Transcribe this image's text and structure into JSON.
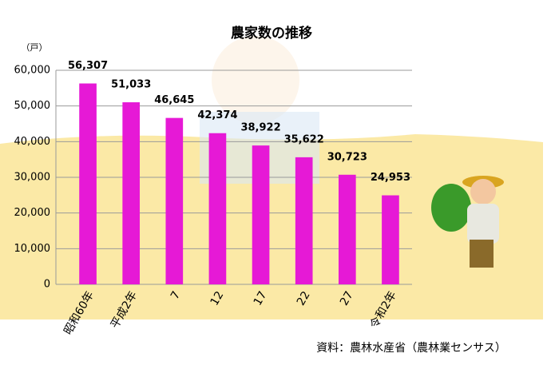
{
  "chart_data": {
    "type": "bar",
    "title": "農家数の推移",
    "ylabel": "（戸）",
    "categories": [
      "昭和60年",
      "平成2年",
      "7",
      "12",
      "17",
      "22",
      "27",
      "令和2年"
    ],
    "values": [
      56307,
      51033,
      46645,
      42374,
      38922,
      35622,
      30723,
      24953
    ],
    "value_labels": [
      "56,307",
      "51,033",
      "46,645",
      "42,374",
      "38,922",
      "35,622",
      "30,723",
      "24,953"
    ],
    "color": "#e619d6",
    "ylim": [
      0,
      60000
    ],
    "yticks": [
      0,
      {
        "value": 10000,
        "label": "10,000"
      },
      {
        "value": 20000,
        "label": "20,000"
      },
      {
        "value": 30000,
        "label": "30,000"
      },
      {
        "value": 40000,
        "label": "40,000"
      },
      {
        "value": 50000,
        "label": "50,000"
      },
      {
        "value": 60000,
        "label": "60,000"
      }
    ],
    "grid": true,
    "source": "資料：農林水産省（農林業センサス）"
  }
}
